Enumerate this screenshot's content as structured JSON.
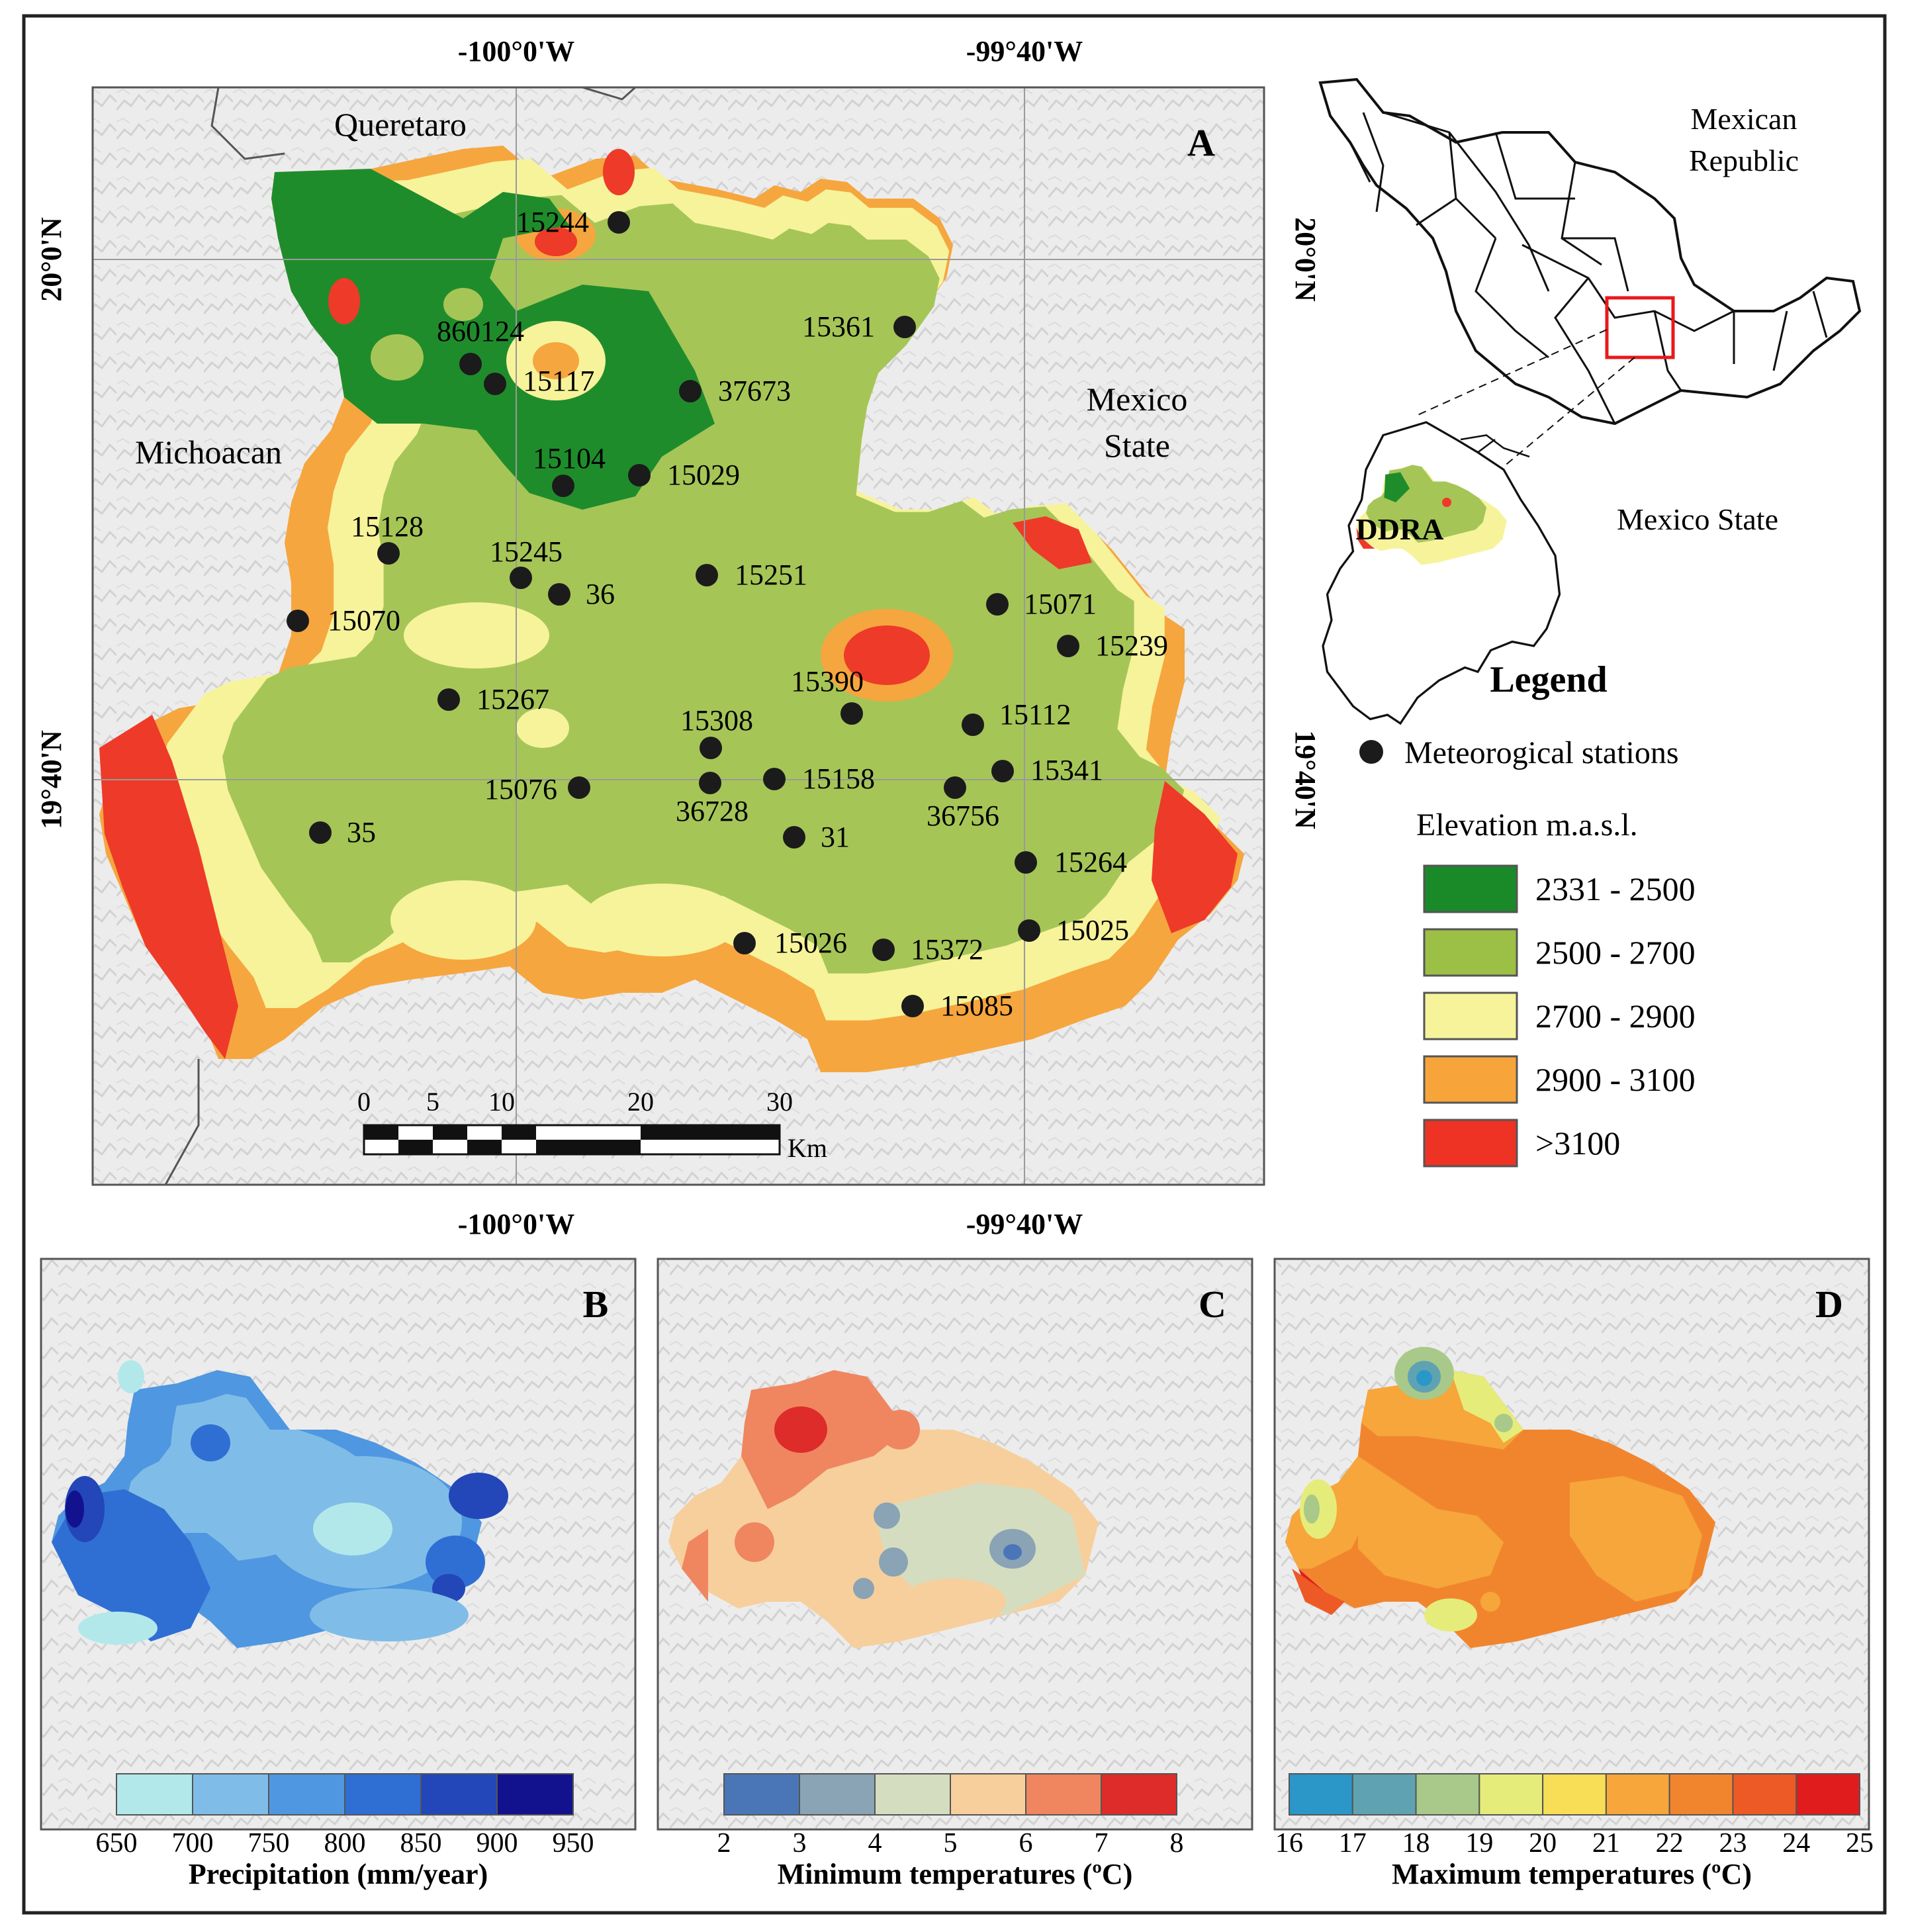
{
  "panel_a": {
    "letter": "A",
    "coords": {
      "top_left": "-100°0'W",
      "top_right": "-99°40'W",
      "bottom_left": "-100°0'W",
      "bottom_right": "-99°40'W",
      "left_top": "20°0'N",
      "left_bottom": "19°40'N",
      "right_top": "20°0'N",
      "right_bottom": "19°40'N"
    },
    "regions": {
      "queretaro": "Queretaro",
      "michoacan": "Michoacan",
      "mexico_state_1": "Mexico",
      "mexico_state_2": "State"
    },
    "scalebar": {
      "ticks": [
        "0",
        "5",
        "10",
        "20",
        "30"
      ],
      "unit": "Km"
    },
    "stations": [
      "15244",
      "15361",
      "860124",
      "15117",
      "37673",
      "15104",
      "15029",
      "15128",
      "15245",
      "36",
      "15251",
      "15070",
      "15071",
      "15239",
      "15390",
      "15267",
      "15308",
      "15112",
      "15076",
      "15158",
      "36728",
      "15341",
      "36756",
      "35",
      "31",
      "15264",
      "15025",
      "15026",
      "15372",
      "15085"
    ]
  },
  "inset": {
    "mexican_republic_1": "Mexican",
    "mexican_republic_2": "Republic",
    "ddra": "DDRA",
    "mexico_state": "Mexico State"
  },
  "legend": {
    "title": "Legend",
    "stations_label": "Meteorogical stations",
    "elevation_title": "Elevation m.a.s.l.",
    "classes": [
      {
        "label": "2331 - 2500",
        "color": "#1a8a28"
      },
      {
        "label": "2500 - 2700",
        "color": "#9cbf46"
      },
      {
        "label": "2700 - 2900",
        "color": "#f6f39b"
      },
      {
        "label": "2900 - 3100",
        "color": "#f7a53a"
      },
      {
        "label": ">3100",
        "color": "#ee3324"
      }
    ]
  },
  "panel_b": {
    "letter": "B",
    "title": "Precipitation (mm/year)",
    "ticks": [
      "650",
      "700",
      "750",
      "800",
      "850",
      "900",
      "950"
    ],
    "colors": [
      "#b3e8ea",
      "#7fbde8",
      "#4f97e0",
      "#2f6fd4",
      "#2346b8",
      "#12128e"
    ]
  },
  "panel_c": {
    "letter": "C",
    "title": "Minimum temperatures (ºC)",
    "ticks": [
      "2",
      "3",
      "4",
      "5",
      "6",
      "7",
      "8"
    ],
    "colors": [
      "#4a76b8",
      "#8aa3b5",
      "#d5ddc0",
      "#f7cf9c",
      "#ef8660",
      "#dd2c2a"
    ]
  },
  "panel_d": {
    "letter": "D",
    "title": "Maximum temperatures (ºC)",
    "ticks": [
      "16",
      "17",
      "18",
      "19",
      "20",
      "21",
      "22",
      "23",
      "24",
      "25"
    ],
    "colors": [
      "#2b97c8",
      "#5fa3b2",
      "#a8c98a",
      "#e6ec7a",
      "#f8de56",
      "#f6a63a",
      "#f1852e",
      "#ed5a26",
      "#e01c1c"
    ]
  },
  "colors": {
    "frame": "#222222",
    "station": "#1b1b1b",
    "hillshade": "#e6e6e6",
    "inset_box": "#e8191b"
  }
}
